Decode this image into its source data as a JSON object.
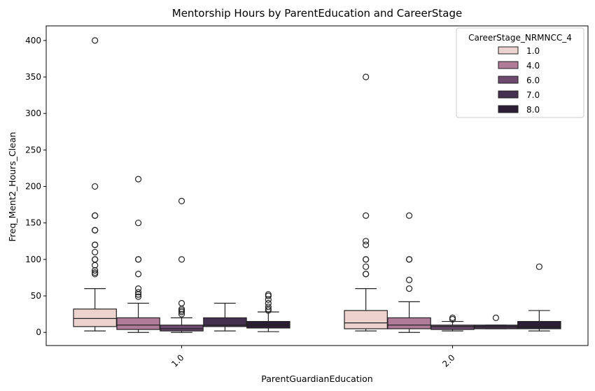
{
  "chart_data": {
    "type": "box",
    "title": "Mentorship Hours by ParentEducation and CareerStage",
    "xlabel": "ParentGuardianEducation",
    "ylabel": "Freq_Ment2_Hours_Clean",
    "categories": [
      "1.0",
      "2.0"
    ],
    "ylim": [
      -18,
      420
    ],
    "yticks": [
      0,
      50,
      100,
      150,
      200,
      250,
      300,
      350,
      400
    ],
    "grid": false,
    "legend": {
      "title": "CareerStage_NRMNCC_4",
      "placement": "top-right"
    },
    "series": [
      {
        "name": "1.0",
        "color": "#ecd3cd",
        "boxes": [
          {
            "whisker_low": 2,
            "q1": 8,
            "median": 19,
            "q3": 32,
            "whisker_high": 60,
            "outliers": [
              80,
              82,
              85,
              92,
              100,
              100,
              110,
              120,
              120,
              140,
              140,
              160,
              160,
              200,
              400
            ]
          },
          {
            "whisker_low": 2,
            "q1": 5,
            "median": 13,
            "q3": 30,
            "whisker_high": 60,
            "outliers": [
              80,
              80,
              90,
              100,
              100,
              120,
              125,
              160,
              350
            ]
          }
        ]
      },
      {
        "name": "4.0",
        "color": "#b07b98",
        "boxes": [
          {
            "whisker_low": 0,
            "q1": 4,
            "median": 10,
            "q3": 20,
            "whisker_high": 40,
            "outliers": [
              49,
              52,
              55,
              60,
              80,
              100,
              100,
              150,
              210
            ]
          },
          {
            "whisker_low": 0,
            "q1": 5,
            "median": 10,
            "q3": 20,
            "whisker_high": 42,
            "outliers": [
              60,
              72,
              100,
              100,
              160
            ]
          }
        ]
      },
      {
        "name": "6.0",
        "color": "#6f4a70",
        "boxes": [
          {
            "whisker_low": 0,
            "q1": 2,
            "median": 5,
            "q3": 10,
            "whisker_high": 20,
            "outliers": [
              25,
              28,
              30,
              32,
              40,
              100,
              180
            ]
          },
          {
            "whisker_low": 2,
            "q1": 4,
            "median": 8,
            "q3": 10,
            "whisker_high": 15,
            "outliers": [
              18,
              20
            ]
          }
        ]
      },
      {
        "name": "7.0",
        "color": "#45314f",
        "boxes": [
          {
            "whisker_low": 2,
            "q1": 8,
            "median": 10,
            "q3": 20,
            "whisker_high": 40,
            "outliers": []
          },
          {
            "whisker_low": 5,
            "q1": 5,
            "median": 8,
            "q3": 10,
            "whisker_high": 10,
            "outliers": [
              20
            ]
          }
        ]
      },
      {
        "name": "8.0",
        "color": "#2d1e35",
        "boxes": [
          {
            "whisker_low": 1,
            "q1": 6,
            "median": 10,
            "q3": 15,
            "whisker_high": 28,
            "outliers": [
              30,
              32,
              35,
              40,
              45,
              50,
              52
            ]
          },
          {
            "whisker_low": 2,
            "q1": 5,
            "median": 8,
            "q3": 15,
            "whisker_high": 30,
            "outliers": [
              90
            ]
          }
        ]
      }
    ]
  }
}
